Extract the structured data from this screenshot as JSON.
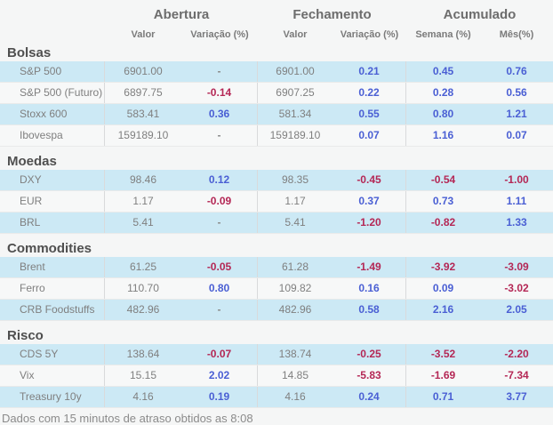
{
  "header": {
    "groups": [
      "Abertura",
      "Fechamento",
      "Acumulado"
    ],
    "subheaders": [
      "Valor",
      "Variação (%)",
      "Valor",
      "Variação (%)",
      "Semana (%)",
      "Mês(%)"
    ]
  },
  "colors": {
    "row_highlight": "#cce9f5",
    "row_alt": "#f7f8f8",
    "positive": "#4a5fd4",
    "negative": "#b42755",
    "neutral_text": "#7f7f7f"
  },
  "sections": [
    {
      "title": "Bolsas",
      "rows": [
        {
          "label": "S&P 500",
          "abertura_valor": "6901.00",
          "abertura_var": "-",
          "fechamento_valor": "6901.00",
          "fechamento_var": "0.21",
          "semana": "0.45",
          "mes": "0.76"
        },
        {
          "label": "S&P 500 (Futuro)",
          "abertura_valor": "6897.75",
          "abertura_var": "-0.14",
          "fechamento_valor": "6907.25",
          "fechamento_var": "0.22",
          "semana": "0.28",
          "mes": "0.56"
        },
        {
          "label": "Stoxx 600",
          "abertura_valor": "583.41",
          "abertura_var": "0.36",
          "fechamento_valor": "581.34",
          "fechamento_var": "0.55",
          "semana": "0.80",
          "mes": "1.21"
        },
        {
          "label": "Ibovespa",
          "abertura_valor": "159189.10",
          "abertura_var": "-",
          "fechamento_valor": "159189.10",
          "fechamento_var": "0.07",
          "semana": "1.16",
          "mes": "0.07"
        }
      ]
    },
    {
      "title": "Moedas",
      "rows": [
        {
          "label": "DXY",
          "abertura_valor": "98.46",
          "abertura_var": "0.12",
          "fechamento_valor": "98.35",
          "fechamento_var": "-0.45",
          "semana": "-0.54",
          "mes": "-1.00"
        },
        {
          "label": "EUR",
          "abertura_valor": "1.17",
          "abertura_var": "-0.09",
          "fechamento_valor": "1.17",
          "fechamento_var": "0.37",
          "semana": "0.73",
          "mes": "1.11"
        },
        {
          "label": "BRL",
          "abertura_valor": "5.41",
          "abertura_var": "-",
          "fechamento_valor": "5.41",
          "fechamento_var": "-1.20",
          "semana": "-0.82",
          "mes": "1.33"
        }
      ]
    },
    {
      "title": "Commodities",
      "rows": [
        {
          "label": "Brent",
          "abertura_valor": "61.25",
          "abertura_var": "-0.05",
          "fechamento_valor": "61.28",
          "fechamento_var": "-1.49",
          "semana": "-3.92",
          "mes": "-3.09"
        },
        {
          "label": "Ferro",
          "abertura_valor": "110.70",
          "abertura_var": "0.80",
          "fechamento_valor": "109.82",
          "fechamento_var": "0.16",
          "semana": "0.09",
          "mes": "-3.02"
        },
        {
          "label": "CRB Foodstuffs",
          "abertura_valor": "482.96",
          "abertura_var": "-",
          "fechamento_valor": "482.96",
          "fechamento_var": "0.58",
          "semana": "2.16",
          "mes": "2.05"
        }
      ]
    },
    {
      "title": "Risco",
      "rows": [
        {
          "label": "CDS 5Y",
          "abertura_valor": "138.64",
          "abertura_var": "-0.07",
          "fechamento_valor": "138.74",
          "fechamento_var": "-0.25",
          "semana": "-3.52",
          "mes": "-2.20"
        },
        {
          "label": "Vix",
          "abertura_valor": "15.15",
          "abertura_var": "2.02",
          "fechamento_valor": "14.85",
          "fechamento_var": "-5.83",
          "semana": "-1.69",
          "mes": "-7.34"
        },
        {
          "label": "Treasury 10y",
          "abertura_valor": "4.16",
          "abertura_var": "0.19",
          "fechamento_valor": "4.16",
          "fechamento_var": "0.24",
          "semana": "0.71",
          "mes": "3.77"
        }
      ]
    }
  ],
  "footer": {
    "text": "Dados com 15 minutos de atraso obtidos as 8:08"
  }
}
